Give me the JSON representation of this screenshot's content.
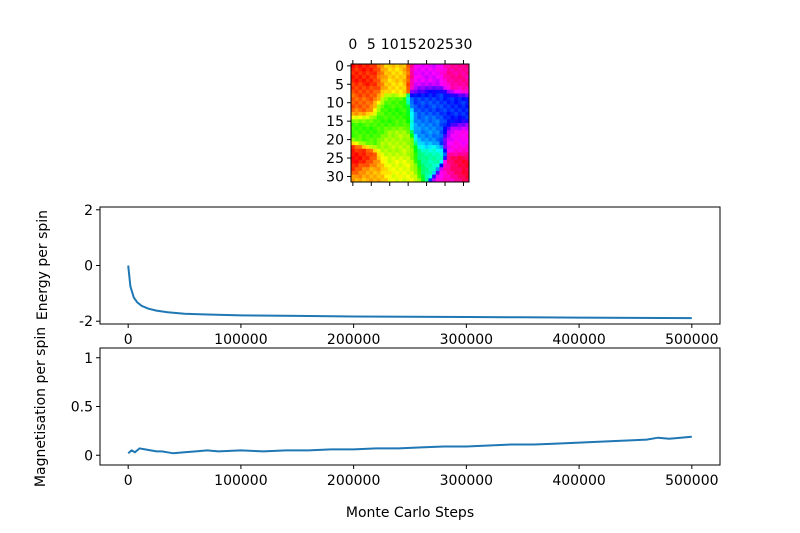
{
  "chart_data": [
    {
      "type": "heatmap",
      "title": "",
      "grid_size": 32,
      "colormap": "hsv",
      "xticks": [
        "0",
        "5",
        "10",
        "15",
        "20",
        "25",
        "30"
      ],
      "yticks": [
        "0",
        "5",
        "10",
        "15",
        "20",
        "25",
        "30"
      ],
      "x_axis_position": "top",
      "blobs": [
        {
          "x": 4,
          "y": 3,
          "hue": 0.02
        },
        {
          "x": 11,
          "y": 3,
          "hue": 0.14
        },
        {
          "x": 3,
          "y": 10,
          "hue": 0.06
        },
        {
          "x": 3,
          "y": 18,
          "hue": 0.3
        },
        {
          "x": 10,
          "y": 13,
          "hue": 0.3
        },
        {
          "x": 12,
          "y": 21,
          "hue": 0.22
        },
        {
          "x": 1,
          "y": 25,
          "hue": 0.0
        },
        {
          "x": 4,
          "y": 30,
          "hue": 0.12
        },
        {
          "x": 14,
          "y": 28,
          "hue": 0.18
        },
        {
          "x": 20,
          "y": 3,
          "hue": 0.82
        },
        {
          "x": 29,
          "y": 3,
          "hue": 0.9
        },
        {
          "x": 21,
          "y": 10,
          "hue": 0.62
        },
        {
          "x": 28,
          "y": 12,
          "hue": 0.64
        },
        {
          "x": 21,
          "y": 18,
          "hue": 0.58
        },
        {
          "x": 29,
          "y": 20,
          "hue": 0.84
        },
        {
          "x": 21,
          "y": 26,
          "hue": 0.44
        },
        {
          "x": 29,
          "y": 28,
          "hue": 0.98
        },
        {
          "x": 26,
          "y": 30,
          "hue": 0.85
        }
      ]
    },
    {
      "type": "line",
      "title": "",
      "xlabel": "",
      "ylabel": "Energy per spin",
      "xlim": [
        -25000,
        525000
      ],
      "ylim": [
        -2.1,
        2.1
      ],
      "xticks": [
        0,
        100000,
        200000,
        300000,
        400000,
        500000
      ],
      "yticks": [
        -2,
        0,
        2
      ],
      "color": "#1f77b4",
      "series": [
        {
          "x": [
            0,
            2000,
            5000,
            8000,
            12000,
            18000,
            25000,
            35000,
            50000,
            70000,
            100000,
            150000,
            200000,
            250000,
            300000,
            350000,
            400000,
            450000,
            500000
          ],
          "values": [
            0.0,
            -0.75,
            -1.15,
            -1.32,
            -1.45,
            -1.55,
            -1.62,
            -1.68,
            -1.73,
            -1.76,
            -1.79,
            -1.81,
            -1.83,
            -1.84,
            -1.85,
            -1.86,
            -1.87,
            -1.88,
            -1.89
          ]
        }
      ]
    },
    {
      "type": "line",
      "title": "",
      "xlabel": "Monte Carlo Steps",
      "ylabel": "Magnetisation per spin",
      "xlim": [
        -25000,
        525000
      ],
      "ylim": [
        -0.1,
        1.1
      ],
      "xticks": [
        0,
        100000,
        200000,
        300000,
        400000,
        500000
      ],
      "yticks": [
        0.0,
        0.5,
        1.0
      ],
      "color": "#1f77b4",
      "series": [
        {
          "x": [
            0,
            3000,
            6000,
            10000,
            15000,
            20000,
            25000,
            30000,
            35000,
            40000,
            50000,
            60000,
            70000,
            80000,
            100000,
            120000,
            140000,
            160000,
            180000,
            200000,
            220000,
            240000,
            260000,
            280000,
            300000,
            320000,
            340000,
            360000,
            380000,
            400000,
            420000,
            440000,
            460000,
            470000,
            480000,
            490000,
            500000
          ],
          "values": [
            0.02,
            0.05,
            0.03,
            0.07,
            0.06,
            0.05,
            0.04,
            0.04,
            0.03,
            0.02,
            0.03,
            0.04,
            0.05,
            0.04,
            0.05,
            0.04,
            0.05,
            0.05,
            0.06,
            0.06,
            0.07,
            0.07,
            0.08,
            0.09,
            0.09,
            0.1,
            0.11,
            0.11,
            0.12,
            0.13,
            0.14,
            0.15,
            0.16,
            0.18,
            0.17,
            0.18,
            0.19
          ]
        }
      ]
    }
  ]
}
